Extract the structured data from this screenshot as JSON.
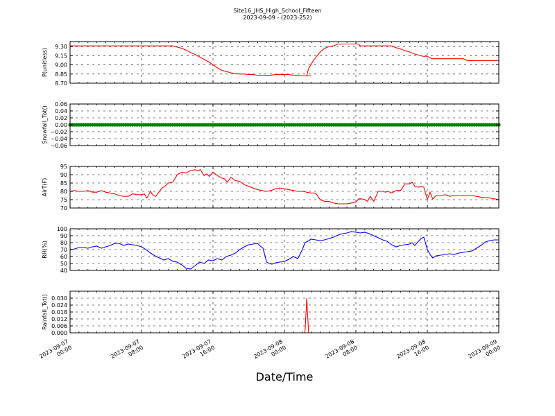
{
  "title": {
    "line1": "Site16_JHS_High_School_Fifteen",
    "line2": "2023-09-09 - (2023-252)"
  },
  "xlabel": "Date/Time",
  "x_ticks": [
    {
      "line1": "2023-09-07",
      "line2": "00:00",
      "hour": 0
    },
    {
      "line1": "2023-09-07",
      "line2": "08:00",
      "hour": 8
    },
    {
      "line1": "2023-09-07",
      "line2": "16:00",
      "hour": 16
    },
    {
      "line1": "2023-09-08",
      "line2": "00:00",
      "hour": 24
    },
    {
      "line1": "2023-09-08",
      "line2": "08:00",
      "hour": 32
    },
    {
      "line1": "2023-09-08",
      "line2": "16:00",
      "hour": 40
    },
    {
      "line1": "2023-09-09",
      "line2": "00:00",
      "hour": 48
    }
  ],
  "chart_data": [
    {
      "type": "line",
      "ylabel": "P(unitless)",
      "ylim": [
        8.7,
        9.38
      ],
      "yticks": [
        "8.70",
        "8.85",
        "9.00",
        "9.15",
        "9.30"
      ],
      "color": "#ff0000",
      "grid": true,
      "series": [
        {
          "x": [
            0,
            4,
            8,
            11.5,
            12,
            12.5,
            13,
            13.5,
            14,
            14.5,
            15,
            15.5,
            16,
            16.5,
            17,
            17.5,
            18,
            18.5,
            19,
            19.5,
            20,
            20.5,
            21,
            21.5,
            22,
            22.5,
            23,
            23.5,
            24,
            24.5,
            25,
            26,
            27,
            26.5,
            26.7,
            27.2,
            27.6,
            28,
            28.5,
            29,
            29.5,
            30,
            31,
            32,
            32.3,
            32.5,
            33,
            34,
            35,
            36,
            36.5,
            37,
            37.5,
            38,
            38.5,
            39,
            39.5,
            40,
            40.5,
            41,
            42,
            43,
            44,
            44.5,
            45,
            46,
            47,
            48
          ],
          "y": [
            9.31,
            9.31,
            9.31,
            9.31,
            9.29,
            9.27,
            9.24,
            9.2,
            9.17,
            9.13,
            9.09,
            9.05,
            9.0,
            8.95,
            8.91,
            8.89,
            8.87,
            8.86,
            8.85,
            8.85,
            8.84,
            8.84,
            8.83,
            8.83,
            8.83,
            8.83,
            8.84,
            8.84,
            8.84,
            8.84,
            8.83,
            8.82,
            8.82,
            8.82,
            8.94,
            9.06,
            9.14,
            9.21,
            9.27,
            9.3,
            9.31,
            9.34,
            9.34,
            9.34,
            9.34,
            9.31,
            9.31,
            9.31,
            9.31,
            9.31,
            9.28,
            9.26,
            9.23,
            9.21,
            9.18,
            9.16,
            9.14,
            9.14,
            9.1,
            9.1,
            9.1,
            9.1,
            9.1,
            9.07,
            9.07,
            9.07,
            9.07,
            9.07
          ]
        }
      ]
    },
    {
      "type": "scatter",
      "ylabel": "Snowfall_Tot()",
      "ylim": [
        -0.06,
        0.06
      ],
      "yticks": [
        "−0.06",
        "−0.04",
        "−0.02",
        "0.00",
        "0.02",
        "0.04",
        "0.06"
      ],
      "color": "#008000",
      "grid": true,
      "series": [
        {
          "x_start": 0,
          "x_end": 48,
          "x_step": 0.25,
          "value": 0.0
        }
      ]
    },
    {
      "type": "line",
      "ylabel": "AirT(F)",
      "ylim": [
        70,
        95
      ],
      "yticks": [
        "70",
        "75",
        "80",
        "85",
        "90",
        "95"
      ],
      "color": "#ff0000",
      "grid": true,
      "series": [
        {
          "x": [
            0,
            0.5,
            1,
            1.5,
            2,
            2.5,
            3,
            3.5,
            4,
            4.5,
            5,
            5.5,
            6,
            6.5,
            7,
            7.5,
            8,
            8.3,
            8.6,
            9,
            9.3,
            9.6,
            10,
            10.3,
            10.6,
            11,
            11.5,
            12,
            12.5,
            13,
            13.5,
            14,
            14.3,
            14.6,
            15,
            15.3,
            15.6,
            16,
            16.5,
            17,
            17.3,
            17.6,
            18,
            18.5,
            19,
            19.5,
            20,
            20.5,
            21,
            21.5,
            22,
            22.5,
            23,
            23.5,
            24,
            24.5,
            25,
            25.5,
            26,
            26.5,
            27,
            27.5,
            28,
            28.5,
            29,
            29.5,
            30,
            30.5,
            31,
            31.5,
            32,
            32.3,
            32.6,
            33,
            33.3,
            33.6,
            34,
            34.5,
            35,
            35.3,
            35.6,
            36,
            36.5,
            37,
            37.5,
            38,
            38.3,
            38.6,
            39,
            39.3,
            39.6,
            40,
            40.3,
            40.6,
            41,
            41.5,
            42,
            42.5,
            43,
            44,
            45,
            46,
            47,
            48
          ],
          "y": [
            80,
            80.5,
            80,
            80,
            80.5,
            79.5,
            79.5,
            80.5,
            79.5,
            79,
            78.5,
            77.5,
            77,
            77,
            78.5,
            78,
            78,
            78.5,
            76,
            80,
            77.5,
            77,
            80,
            82,
            83,
            85,
            85.5,
            90,
            91.5,
            91,
            92.5,
            93,
            92.5,
            93,
            89.5,
            90.5,
            89,
            91.5,
            89.5,
            88,
            87.5,
            85.5,
            88.5,
            86.5,
            86,
            84,
            83,
            82,
            81,
            80.5,
            80,
            80.5,
            81.5,
            82,
            81.5,
            81,
            80.5,
            80,
            80,
            79.5,
            79,
            79,
            75,
            74,
            74,
            73,
            72.5,
            72.5,
            72.5,
            73,
            73.5,
            75.5,
            75.5,
            75,
            74,
            77,
            74,
            80,
            80,
            79.5,
            80,
            79,
            80.5,
            80.5,
            84.5,
            84.5,
            85.5,
            83,
            82.5,
            83,
            82.5,
            75,
            79.5,
            75.5,
            77.5,
            77.5,
            78,
            77,
            77.5,
            77.5,
            77.5,
            76.5,
            76,
            75
          ]
        }
      ]
    },
    {
      "type": "line",
      "ylabel": "RH(%)",
      "ylim": [
        40,
        100
      ],
      "yticks": [
        "40",
        "50",
        "60",
        "70",
        "80",
        "90",
        "100"
      ],
      "color": "#0000ff",
      "grid": true,
      "series": [
        {
          "x": [
            0,
            0.5,
            1,
            1.5,
            2,
            2.5,
            3,
            3.5,
            4,
            4.5,
            5,
            5.5,
            6,
            6.5,
            7,
            7.5,
            8,
            8.5,
            9,
            9.5,
            10,
            10.5,
            11,
            11.5,
            12,
            12.5,
            13,
            13.5,
            14,
            14.5,
            15,
            15.5,
            16,
            16.5,
            17,
            17.5,
            18,
            18.5,
            19,
            19.5,
            20,
            20.5,
            21,
            21.3,
            21.6,
            22,
            22.3,
            22.6,
            23,
            23.5,
            24,
            24.5,
            25,
            25.5,
            26,
            26.3,
            26.6,
            27,
            27.5,
            28,
            28.5,
            29,
            29.5,
            30,
            30.5,
            31,
            31.5,
            32,
            32.5,
            33,
            33.5,
            34,
            34.5,
            35,
            35.5,
            36,
            36.5,
            37,
            37.5,
            38,
            38.3,
            38.6,
            39,
            39.3,
            39.6,
            40,
            40.3,
            40.6,
            41,
            41.5,
            42,
            42.5,
            43,
            43.5,
            44,
            44.5,
            45,
            45.5,
            46,
            46.5,
            47,
            47.5,
            48
          ],
          "y": [
            69,
            71,
            73,
            73,
            72,
            74,
            75,
            72,
            74,
            76,
            79,
            79,
            76,
            78,
            77,
            76,
            74,
            70,
            65,
            61,
            58,
            55,
            57,
            53,
            52,
            48,
            43,
            42,
            47,
            52,
            50,
            55,
            54,
            57,
            55,
            60,
            62,
            65,
            70,
            74,
            77,
            78,
            79,
            75,
            72,
            52,
            50,
            49,
            51,
            52,
            53,
            56,
            60,
            57,
            70,
            80,
            82,
            85,
            84,
            83,
            84,
            86,
            88,
            91,
            93,
            94,
            96,
            95,
            94,
            95,
            93,
            90,
            87,
            84,
            82,
            77,
            74,
            76,
            77,
            78,
            80,
            76,
            82,
            86,
            88,
            70,
            63,
            58,
            61,
            62,
            63,
            64,
            63,
            65,
            66,
            67,
            68,
            72,
            76,
            81,
            83,
            84,
            84
          ]
        }
      ]
    },
    {
      "type": "line",
      "ylabel": "Rainfall_Tot()",
      "ylim": [
        0,
        0.036
      ],
      "yticks": [
        "0.000",
        "0.006",
        "0.012",
        "0.018",
        "0.024",
        "0.030"
      ],
      "color": "#ff0000",
      "grid": true,
      "series": [
        {
          "x": [
            0,
            26.3,
            26.5,
            26.7,
            48
          ],
          "y": [
            0,
            0,
            0.03,
            0,
            0
          ]
        }
      ]
    }
  ]
}
